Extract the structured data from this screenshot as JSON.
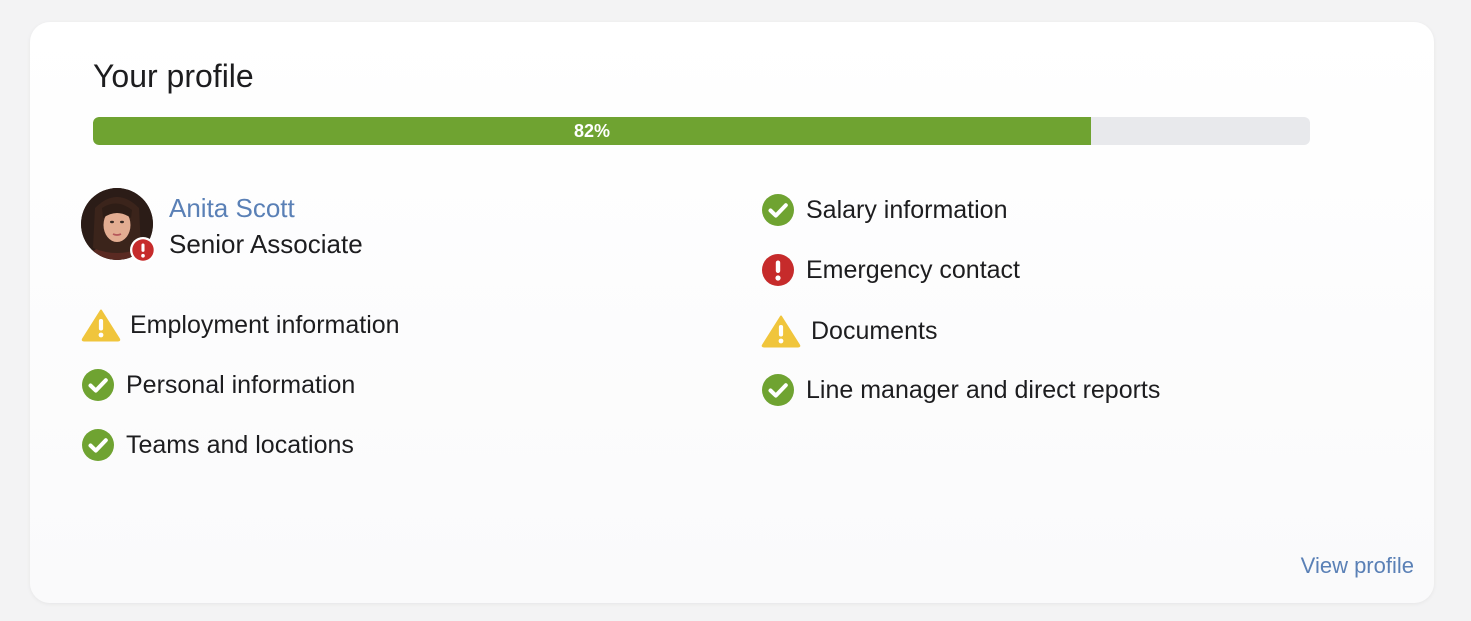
{
  "card": {
    "title": "Your profile",
    "progress": {
      "percent": 82,
      "label": "82%",
      "fill_color": "#6fa331",
      "track_color": "#e8e9ec"
    },
    "user": {
      "name": "Anita Scott",
      "role": "Senior Associate",
      "avatar_badge": "error-icon"
    },
    "sections_left": [
      {
        "label": "Employment information",
        "status": "warning",
        "icon": "warning-icon"
      },
      {
        "label": "Personal information",
        "status": "complete",
        "icon": "check-circle-icon"
      },
      {
        "label": "Teams and locations",
        "status": "complete",
        "icon": "check-circle-icon"
      }
    ],
    "sections_right": [
      {
        "label": "Salary information",
        "status": "complete",
        "icon": "check-circle-icon"
      },
      {
        "label": "Emergency contact",
        "status": "error",
        "icon": "error-icon"
      },
      {
        "label": "Documents",
        "status": "warning",
        "icon": "warning-icon"
      },
      {
        "label": "Line manager and direct reports",
        "status": "complete",
        "icon": "check-circle-icon"
      }
    ],
    "view_profile_label": "View profile",
    "colors": {
      "complete": "#6fa331",
      "warning": "#f0c53c",
      "error": "#c62b2b",
      "link": "#5a80b6"
    }
  }
}
